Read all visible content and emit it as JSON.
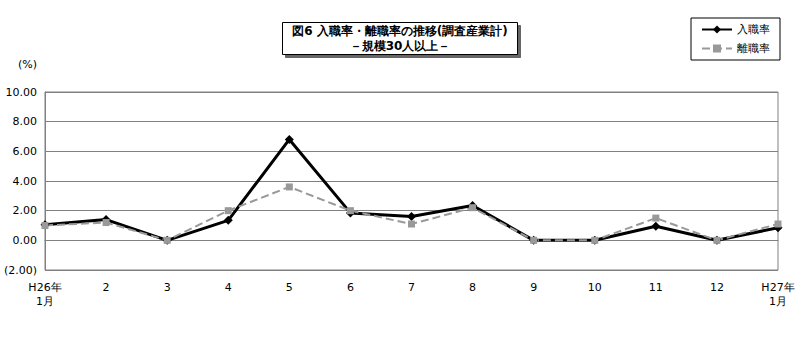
{
  "chart_data": {
    "type": "line",
    "title": "図6 入職率・離職率の推移(調査産業計)",
    "subtitle": "－規模30人以上－",
    "y_label": "(%)",
    "categories": [
      "H26年\n1月",
      "2",
      "3",
      "4",
      "5",
      "6",
      "7",
      "8",
      "9",
      "10",
      "11",
      "12",
      "H27年\n1月"
    ],
    "series": [
      {
        "name": "入職率",
        "color": "#000000",
        "marker": "diamond",
        "line_style": "solid",
        "values": [
          1.05,
          1.4,
          0.0,
          1.35,
          6.8,
          1.85,
          1.6,
          2.35,
          0.0,
          0.0,
          0.95,
          0.0,
          0.85
        ]
      },
      {
        "name": "離職率",
        "color": "#999999",
        "marker": "square",
        "line_style": "dashed",
        "values": [
          1.0,
          1.2,
          0.0,
          2.0,
          3.6,
          2.0,
          1.1,
          2.2,
          0.0,
          0.0,
          1.5,
          0.0,
          1.1
        ]
      }
    ],
    "ylim": [
      -2,
      10
    ],
    "yticks": [
      {
        "value": -2,
        "label": "(2.00)"
      },
      {
        "value": 0,
        "label": "0.00"
      },
      {
        "value": 2,
        "label": "2.00"
      },
      {
        "value": 4,
        "label": "4.00"
      },
      {
        "value": 6,
        "label": "6.00"
      },
      {
        "value": 8,
        "label": "8.00"
      },
      {
        "value": 10,
        "label": "10.00"
      }
    ],
    "grid": true,
    "legend": "upper right"
  }
}
